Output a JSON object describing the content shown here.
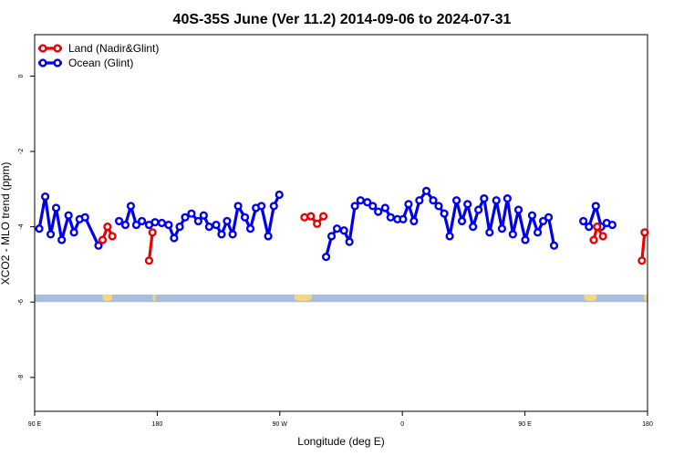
{
  "chart_data": {
    "type": "line",
    "title": "40S-35S June (Ver 11.2)   2014-09-06 to 2024-07-31",
    "xlabel": "Longitude (deg E)",
    "ylabel": "XCO2 - MLO trend (ppm)",
    "xlim": [
      90,
      450
    ],
    "ylim": [
      -8.9,
      1.1
    ],
    "x_ticks": [
      90,
      162,
      234,
      306,
      378,
      450
    ],
    "x_tick_labels": [
      "90 E",
      "180",
      "90 W",
      "0",
      "90 E",
      "180"
    ],
    "y_ticks": [
      0,
      -2,
      -4,
      -6,
      -8
    ],
    "y_tick_labels": [
      "0",
      "-2",
      "-4",
      "-6",
      "-8"
    ],
    "grid": false,
    "legend_position": "top-left",
    "series": [
      {
        "name": "Land (Nadir&Glint)",
        "color": "#ee0000",
        "segments": [
          [
            [
              129.9,
              -4.35
            ],
            [
              132.8,
              -4.0
            ],
            [
              135.6,
              -4.25
            ]
          ],
          [
            [
              157.2,
              -4.9
            ],
            [
              159.2,
              -4.15
            ]
          ],
          [
            [
              248.5,
              -3.75
            ],
            [
              252.2,
              -3.72
            ],
            [
              255.9,
              -3.92
            ],
            [
              259.6,
              -3.72
            ]
          ],
          [
            [
              418.4,
              -4.35
            ],
            [
              420.4,
              -4.0
            ],
            [
              423.8,
              -4.25
            ]
          ],
          [
            [
              446.7,
              -4.9
            ],
            [
              448.3,
              -4.15
            ]
          ]
        ]
      },
      {
        "name": "Ocean (Glint)",
        "color": "#0000ee",
        "segments": [
          [
            [
              92.7,
              -4.05
            ],
            [
              96.2,
              -3.2
            ],
            [
              99.4,
              -4.2
            ],
            [
              102.6,
              -3.5
            ],
            [
              105.9,
              -4.35
            ],
            [
              109.9,
              -3.7
            ],
            [
              113.1,
              -4.15
            ],
            [
              116.4,
              -3.8
            ],
            [
              119.6,
              -3.75
            ],
            [
              127.5,
              -4.5
            ]
          ],
          [
            [
              139.6,
              -3.85
            ],
            [
              143.3,
              -3.95
            ],
            [
              146.5,
              -3.45
            ],
            [
              149.7,
              -3.95
            ],
            [
              153.0,
              -3.85
            ],
            [
              157.2,
              -3.95
            ],
            [
              160.7,
              -3.88
            ],
            [
              164.7,
              -3.9
            ],
            [
              168.7,
              -3.95
            ],
            [
              171.9,
              -4.3
            ],
            [
              175.2,
              -4.0
            ],
            [
              178.4,
              -3.75
            ],
            [
              182.1,
              -3.65
            ],
            [
              186.1,
              -3.85
            ],
            [
              189.3,
              -3.7
            ],
            [
              192.5,
              -4.0
            ],
            [
              196.6,
              -3.95
            ],
            [
              199.8,
              -4.2
            ],
            [
              203.0,
              -3.85
            ],
            [
              206.3,
              -4.2
            ],
            [
              209.5,
              -3.45
            ],
            [
              213.5,
              -3.75
            ],
            [
              216.7,
              -4.05
            ],
            [
              220.0,
              -3.5
            ],
            [
              223.2,
              -3.45
            ],
            [
              227.2,
              -4.25
            ],
            [
              230.5,
              -3.45
            ],
            [
              233.7,
              -3.15
            ]
          ],
          [
            [
              261.2,
              -4.8
            ],
            [
              264.4,
              -4.25
            ],
            [
              267.6,
              -4.05
            ],
            [
              271.7,
              -4.1
            ],
            [
              274.9,
              -4.4
            ],
            [
              278.1,
              -3.45
            ],
            [
              281.4,
              -3.3
            ],
            [
              285.4,
              -3.35
            ],
            [
              288.6,
              -3.45
            ],
            [
              291.8,
              -3.6
            ],
            [
              295.9,
              -3.5
            ],
            [
              299.1,
              -3.75
            ],
            [
              303.1,
              -3.8
            ],
            [
              306.4,
              -3.8
            ],
            [
              309.6,
              -3.4
            ],
            [
              312.8,
              -3.85
            ],
            [
              316.0,
              -3.3
            ],
            [
              320.1,
              -3.05
            ],
            [
              324.1,
              -3.3
            ],
            [
              327.3,
              -3.45
            ],
            [
              330.6,
              -3.65
            ],
            [
              333.8,
              -4.25
            ],
            [
              337.8,
              -3.3
            ],
            [
              341.0,
              -3.85
            ],
            [
              344.3,
              -3.4
            ],
            [
              347.5,
              -4.0
            ],
            [
              350.7,
              -3.55
            ],
            [
              354.0,
              -3.25
            ],
            [
              357.2,
              -4.15
            ],
            [
              361.2,
              -3.3
            ],
            [
              364.5,
              -4.05
            ],
            [
              367.7,
              -3.25
            ],
            [
              370.9,
              -4.2
            ],
            [
              374.2,
              -3.55
            ],
            [
              378.2,
              -4.35
            ],
            [
              382.2,
              -3.7
            ],
            [
              385.5,
              -4.15
            ],
            [
              388.7,
              -3.85
            ],
            [
              391.9,
              -3.75
            ],
            [
              395.1,
              -4.5
            ]
          ],
          [
            [
              412.3,
              -3.85
            ],
            [
              415.6,
              -4.0
            ],
            [
              419.6,
              -3.45
            ],
            [
              422.8,
              -4.0
            ],
            [
              426.0,
              -3.9
            ],
            [
              429.3,
              -3.95
            ]
          ]
        ]
      }
    ],
    "land_band": {
      "y_range": [
        -6.0,
        -5.8
      ],
      "ocean_color": "#a8bedc",
      "land_color": "#f5d77a",
      "land_patches": [
        [
          130.0,
          132.8,
          135.5,
          "#f5d77a"
        ],
        [
          159.3,
          160.3,
          161.0,
          "#f5d77a"
        ],
        [
          242.6,
          247.8,
          252.8,
          "#f5d77a"
        ],
        [
          412.8,
          416.8,
          420.0,
          "#f5d77a"
        ],
        [
          447.8,
          449.0,
          450.0,
          "#f5d77a"
        ]
      ]
    }
  }
}
